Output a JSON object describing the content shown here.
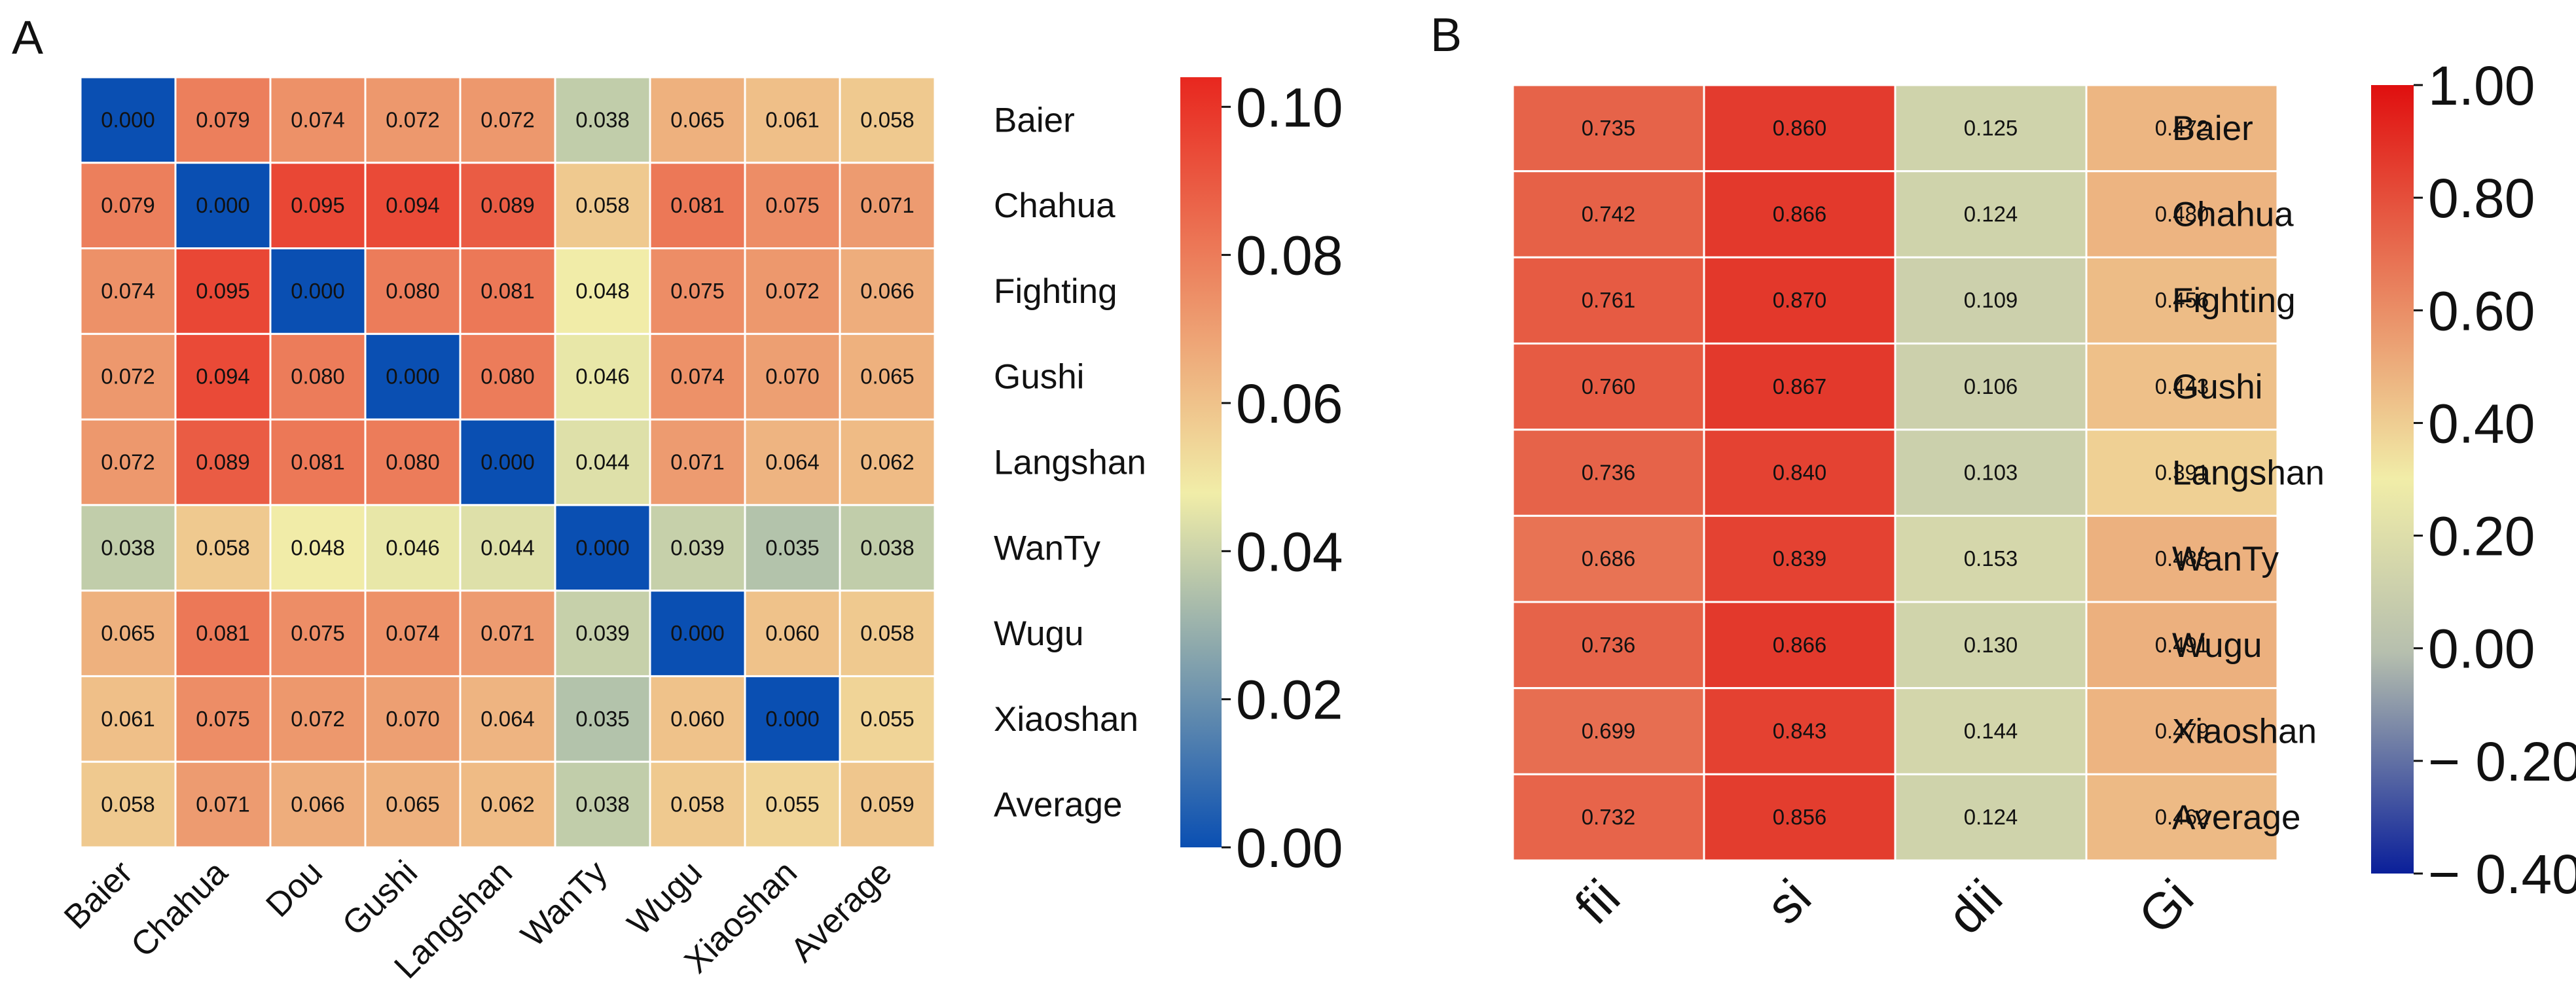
{
  "panels": {
    "a": {
      "label": "A"
    },
    "b": {
      "label": "B"
    }
  },
  "chart_data": [
    {
      "type": "heatmap",
      "panel": "A",
      "x_categories": [
        "Baier",
        "Chahua",
        "Dou",
        "Gushi",
        "Langshan",
        "WanTy",
        "Wugu",
        "Xiaoshan",
        "Average"
      ],
      "y_categories": [
        "Baier",
        "Chahua",
        "Fighting",
        "Gushi",
        "Langshan",
        "WanTy",
        "Wugu",
        "Xiaoshan",
        "Average"
      ],
      "values": [
        [
          "0.000",
          "0.079",
          "0.074",
          "0.072",
          "0.072",
          "0.038",
          "0.065",
          "0.061",
          "0.058"
        ],
        [
          "0.079",
          "0.000",
          "0.095",
          "0.094",
          "0.089",
          "0.058",
          "0.081",
          "0.075",
          "0.071"
        ],
        [
          "0.074",
          "0.095",
          "0.000",
          "0.080",
          "0.081",
          "0.048",
          "0.075",
          "0.072",
          "0.066"
        ],
        [
          "0.072",
          "0.094",
          "0.080",
          "0.000",
          "0.080",
          "0.046",
          "0.074",
          "0.070",
          "0.065"
        ],
        [
          "0.072",
          "0.089",
          "0.081",
          "0.080",
          "0.000",
          "0.044",
          "0.071",
          "0.064",
          "0.062"
        ],
        [
          "0.038",
          "0.058",
          "0.048",
          "0.046",
          "0.044",
          "0.000",
          "0.039",
          "0.035",
          "0.038"
        ],
        [
          "0.065",
          "0.081",
          "0.075",
          "0.074",
          "0.071",
          "0.039",
          "0.000",
          "0.060",
          "0.058"
        ],
        [
          "0.061",
          "0.075",
          "0.072",
          "0.070",
          "0.064",
          "0.035",
          "0.060",
          "0.000",
          "0.055"
        ],
        [
          "0.058",
          "0.071",
          "0.066",
          "0.065",
          "0.062",
          "0.038",
          "0.058",
          "0.055",
          "0.059"
        ]
      ],
      "colorbar": {
        "range": [
          0.0,
          0.104
        ],
        "ticks": [
          0.0,
          0.02,
          0.04,
          0.06,
          0.08,
          0.1
        ],
        "tick_labels": [
          "0.00",
          "0.02",
          "0.04",
          "0.06",
          "0.08",
          "0.10"
        ]
      },
      "colormap": [
        "#0a4fb2",
        "#f1eda8",
        "#e8271f"
      ]
    },
    {
      "type": "heatmap",
      "panel": "B",
      "x_categories": [
        "fii",
        "si",
        "dii",
        "Gi"
      ],
      "y_categories": [
        "Baier",
        "Chahua",
        "Fighting",
        "Gushi",
        "Langshan",
        "WanTy",
        "Wugu",
        "Xiaoshan",
        "Average"
      ],
      "values": [
        [
          "0.735",
          "0.860",
          "0.125",
          "0.472"
        ],
        [
          "0.742",
          "0.866",
          "0.124",
          "0.480"
        ],
        [
          "0.761",
          "0.870",
          "0.109",
          "0.456"
        ],
        [
          "0.760",
          "0.867",
          "0.106",
          "0.443"
        ],
        [
          "0.736",
          "0.840",
          "0.103",
          "0.391"
        ],
        [
          "0.686",
          "0.839",
          "0.153",
          "0.488"
        ],
        [
          "0.736",
          "0.866",
          "0.130",
          "0.491"
        ],
        [
          "0.699",
          "0.843",
          "0.144",
          "0.479"
        ],
        [
          "0.732",
          "0.856",
          "0.124",
          "0.462"
        ]
      ],
      "colorbar": {
        "range": [
          -0.4,
          1.0
        ],
        "ticks": [
          1.0,
          0.8,
          0.6,
          0.4,
          0.2,
          0.0,
          -0.2,
          -0.4
        ],
        "tick_labels": [
          "1.00",
          "0.80",
          "0.60",
          "0.40",
          "0.20",
          "0.00",
          "− 0.20",
          "− 0.40"
        ]
      },
      "colormap": [
        "#0a1f9a",
        "#b6bfae",
        "#f1eda8",
        "#e00f0f"
      ]
    }
  ]
}
